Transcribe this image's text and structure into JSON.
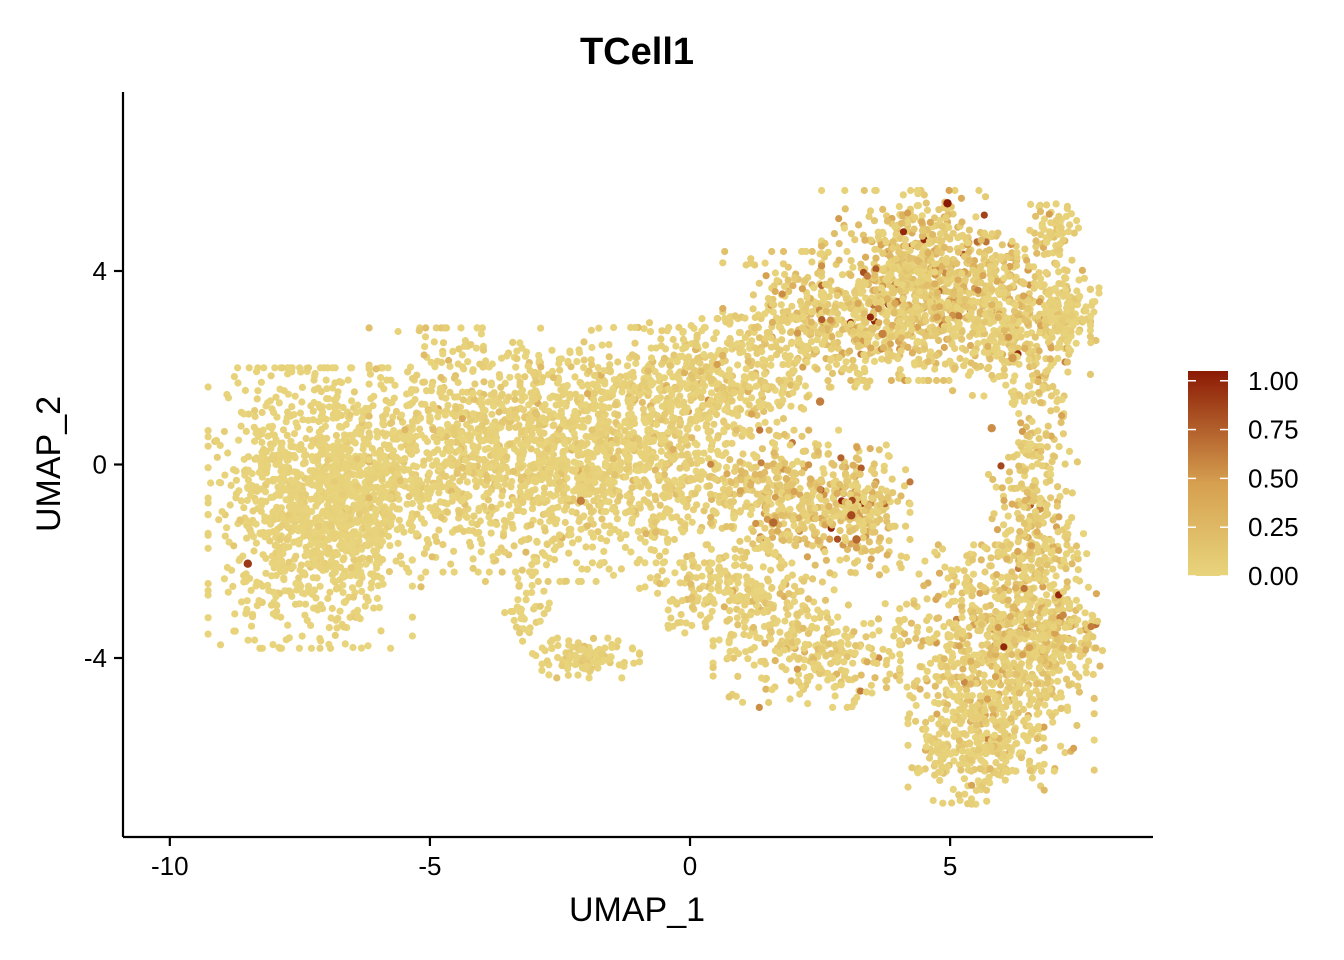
{
  "chart_data": {
    "type": "scatter",
    "title": "TCell1",
    "xlabel": "UMAP_1",
    "ylabel": "UMAP_2",
    "xlim": [
      -10.9,
      8.9
    ],
    "ylim": [
      -7.7,
      7.7
    ],
    "x_ticks": [
      -10,
      -5,
      0,
      5
    ],
    "x_tick_labels": [
      "-10",
      "-5",
      "0",
      "5"
    ],
    "y_ticks": [
      4,
      0,
      -4
    ],
    "y_tick_labels": [
      "4",
      "0",
      "-4"
    ],
    "grid": false,
    "legend": {
      "placement": "right",
      "type": "colorbar",
      "min": 0,
      "max": 1.05,
      "ticks": [
        1.0,
        0.75,
        0.5,
        0.25,
        0.0
      ],
      "tick_labels": [
        "1.00",
        "0.75",
        "0.50",
        "0.25",
        "0.00"
      ],
      "color_low": "#E8D47C",
      "color_mid": "#D6A050",
      "color_high": "#8B1A04"
    },
    "regions": [
      {
        "cx": -7.3,
        "cy": -0.9,
        "sx": 1.05,
        "sy": 1.55,
        "n": 1100,
        "v": 0.03
      },
      {
        "cx": -6.2,
        "cy": -0.5,
        "sx": 0.55,
        "sy": 1.2,
        "n": 300,
        "v": 0.04
      },
      {
        "cx": -4.3,
        "cy": 0.3,
        "sx": 1.0,
        "sy": 1.35,
        "n": 700,
        "v": 0.09
      },
      {
        "cx": -2.3,
        "cy": 0.2,
        "sx": 1.0,
        "sy": 1.4,
        "n": 750,
        "v": 0.08
      },
      {
        "cx": -0.5,
        "cy": 0.4,
        "sx": 0.9,
        "sy": 1.3,
        "n": 600,
        "v": 0.1
      },
      {
        "cx": 0.8,
        "cy": 1.8,
        "sx": 0.9,
        "sy": 0.65,
        "n": 300,
        "v": 0.14
      },
      {
        "cx": 2.5,
        "cy": 3.0,
        "sx": 1.0,
        "sy": 0.75,
        "n": 400,
        "v": 0.2
      },
      {
        "cx": 4.4,
        "cy": 3.7,
        "sx": 1.0,
        "sy": 1.05,
        "n": 850,
        "v": 0.27
      },
      {
        "cx": 6.2,
        "cy": 3.1,
        "sx": 0.8,
        "sy": 0.9,
        "n": 450,
        "v": 0.22
      },
      {
        "cx": 7.3,
        "cy": 3.1,
        "sx": 0.3,
        "sy": 0.4,
        "n": 120,
        "v": 0.1
      },
      {
        "cx": 7.0,
        "cy": 4.9,
        "sx": 0.25,
        "sy": 0.3,
        "n": 50,
        "v": 0.1
      },
      {
        "cx": 1.8,
        "cy": -0.6,
        "sx": 0.75,
        "sy": 0.7,
        "n": 300,
        "v": 0.28
      },
      {
        "cx": 3.2,
        "cy": -1.0,
        "sx": 0.55,
        "sy": 0.75,
        "n": 260,
        "v": 0.36
      },
      {
        "cx": 0.9,
        "cy": -2.6,
        "sx": 1.0,
        "sy": 0.55,
        "n": 250,
        "v": 0.12
      },
      {
        "cx": 2.5,
        "cy": -3.9,
        "sx": 1.1,
        "sy": 0.6,
        "n": 260,
        "v": 0.14
      },
      {
        "cx": 5.9,
        "cy": -4.0,
        "sx": 1.0,
        "sy": 1.25,
        "n": 700,
        "v": 0.17
      },
      {
        "cx": 5.5,
        "cy": -5.9,
        "sx": 0.7,
        "sy": 0.6,
        "n": 250,
        "v": 0.1
      },
      {
        "cx": 6.9,
        "cy": -3.5,
        "sx": 0.55,
        "sy": 0.55,
        "n": 220,
        "v": 0.3
      },
      {
        "cx": 6.6,
        "cy": -1.5,
        "sx": 0.55,
        "sy": 1.0,
        "n": 220,
        "v": 0.22
      },
      {
        "cx": 6.6,
        "cy": 0.8,
        "sx": 0.35,
        "sy": 0.9,
        "n": 110,
        "v": 0.2
      },
      {
        "cx": -2.0,
        "cy": -4.0,
        "sx": 0.55,
        "sy": 0.22,
        "n": 120,
        "v": 0.08
      },
      {
        "cx": -3.1,
        "cy": -3.0,
        "sx": 0.25,
        "sy": 0.45,
        "n": 40,
        "v": 0.05
      }
    ],
    "highlights": [
      {
        "x": 4.95,
        "y": 5.4,
        "v": 1.05
      },
      {
        "x": -8.5,
        "y": -2.05,
        "v": 0.92
      },
      {
        "x": 3.1,
        "y": -1.05,
        "v": 0.85
      },
      {
        "x": 3.2,
        "y": -1.55,
        "v": 0.72
      },
      {
        "x": 1.6,
        "y": -1.2,
        "v": 0.72
      },
      {
        "x": 2.5,
        "y": 1.3,
        "v": 0.62
      },
      {
        "x": 5.8,
        "y": 0.75,
        "v": 0.55
      },
      {
        "x": -2.1,
        "y": -0.75,
        "v": 0.62
      },
      {
        "x": 3.7,
        "y": 2.7,
        "v": 0.6
      },
      {
        "x": 6.2,
        "y": 2.2,
        "v": 0.5
      }
    ]
  }
}
